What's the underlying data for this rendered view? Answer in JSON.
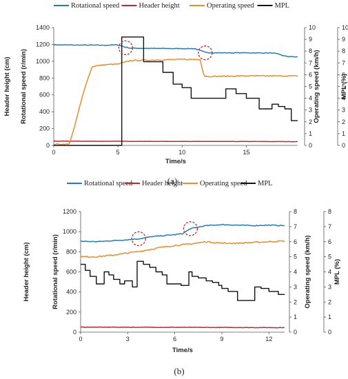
{
  "chart_data": [
    {
      "type": "line",
      "caption": "(a)",
      "xlabel": "Time/s",
      "xlim": [
        0,
        19
      ],
      "xticks": [
        0,
        5,
        10,
        15
      ],
      "axes": [
        {
          "label": "Header height (cm)",
          "ticks": [
            0,
            200,
            400,
            600,
            800,
            1000,
            1200,
            1400
          ],
          "lim": [
            0,
            1400
          ]
        },
        {
          "label": "Rotational speed (r/min)",
          "ticks": [
            0,
            200,
            400,
            600,
            800,
            1000,
            1200,
            1400
          ],
          "lim": [
            0,
            1400
          ]
        },
        {
          "label": "Operating speed (km/h)",
          "ticks": [
            0,
            1,
            2,
            3,
            4,
            5,
            6,
            7,
            8,
            9,
            10
          ],
          "lim": [
            0,
            10
          ]
        },
        {
          "label": "MPL (%)",
          "ticks": [
            0,
            1,
            2,
            3,
            4,
            5,
            6,
            7,
            8,
            9,
            10
          ],
          "lim": [
            0,
            10
          ]
        }
      ],
      "legend_position": "top",
      "series": [
        {
          "name": "Rotational speed",
          "color": "#1f7bc4",
          "axis": 1,
          "noise": 4,
          "points": [
            [
              0,
              1195
            ],
            [
              2,
              1192
            ],
            [
              4,
              1190
            ],
            [
              5,
              1195
            ],
            [
              5.5,
              1170
            ],
            [
              6,
              1155
            ],
            [
              8,
              1152
            ],
            [
              10,
              1150
            ],
            [
              11,
              1150
            ],
            [
              11.8,
              1105
            ],
            [
              12.5,
              1100
            ],
            [
              15,
              1100
            ],
            [
              17,
              1098
            ],
            [
              17.5,
              1085
            ],
            [
              18,
              1060
            ],
            [
              19,
              1050
            ]
          ]
        },
        {
          "name": "Header height",
          "color": "#c0272d",
          "axis": 0,
          "noise": 1,
          "points": [
            [
              0,
              50
            ],
            [
              19,
              45
            ]
          ]
        },
        {
          "name": "Operating speed",
          "color": "#f08a24",
          "axis": 2,
          "noise": 0.04,
          "points": [
            [
              0,
              0.1
            ],
            [
              1.2,
              0.1
            ],
            [
              1.6,
              1.5
            ],
            [
              2,
              3.2
            ],
            [
              2.5,
              5.2
            ],
            [
              3,
              6.7
            ],
            [
              4,
              6.85
            ],
            [
              5,
              6.9
            ],
            [
              5.5,
              7.05
            ],
            [
              6,
              7.2
            ],
            [
              8,
              7.25
            ],
            [
              10,
              7.3
            ],
            [
              11.4,
              7.3
            ],
            [
              11.7,
              5.9
            ],
            [
              12,
              5.85
            ],
            [
              15,
              5.9
            ],
            [
              19,
              5.9
            ]
          ]
        },
        {
          "name": "MPL",
          "color": "#111111",
          "axis": 3,
          "step": true,
          "points": [
            [
              0,
              0
            ],
            [
              5.3,
              0
            ],
            [
              5.3,
              9.2
            ],
            [
              7,
              9.2
            ],
            [
              7,
              7.1
            ],
            [
              8.5,
              7.1
            ],
            [
              8.5,
              6.2
            ],
            [
              9.3,
              6.2
            ],
            [
              9.3,
              5.2
            ],
            [
              10,
              5.2
            ],
            [
              10,
              4.9
            ],
            [
              10.7,
              4.9
            ],
            [
              10.7,
              4.0
            ],
            [
              13.4,
              4.0
            ],
            [
              13.4,
              4.8
            ],
            [
              14.2,
              4.8
            ],
            [
              14.2,
              4.4
            ],
            [
              15,
              4.4
            ],
            [
              15,
              4.0
            ],
            [
              16,
              4.0
            ],
            [
              16,
              3.1
            ],
            [
              17,
              3.1
            ],
            [
              17,
              3.5
            ],
            [
              17.5,
              3.5
            ],
            [
              17.5,
              3.3
            ],
            [
              18,
              3.3
            ],
            [
              18,
              3.1
            ],
            [
              18.5,
              3.1
            ],
            [
              18.5,
              2.1
            ],
            [
              19,
              2.1
            ]
          ]
        }
      ],
      "annotations": [
        {
          "type": "circle",
          "x": 5.6,
          "y": 1160,
          "axis": 1
        },
        {
          "type": "circle",
          "x": 11.8,
          "y": 1100,
          "axis": 1
        }
      ]
    },
    {
      "type": "line",
      "caption": "(b)",
      "xlabel": "Time/s",
      "xlim": [
        0,
        13
      ],
      "xticks": [
        0,
        3,
        6,
        9,
        12
      ],
      "axes": [
        {
          "label": "Header height (cm)",
          "ticks": [
            0,
            200,
            400,
            600,
            800,
            1000,
            1200
          ],
          "lim": [
            0,
            1200
          ]
        },
        {
          "label": "Rotational speed (r/min)",
          "ticks": [
            0,
            200,
            400,
            600,
            800,
            1000,
            1200
          ],
          "lim": [
            0,
            1200
          ]
        },
        {
          "label": "Operating speed (km/h)",
          "ticks": [
            0,
            1,
            2,
            3,
            4,
            5,
            6,
            7,
            8
          ],
          "lim": [
            0,
            8
          ]
        },
        {
          "label": "MPL (%)",
          "ticks": [
            0,
            1,
            2,
            3,
            4,
            5,
            6,
            7,
            8
          ],
          "lim": [
            0,
            8
          ]
        }
      ],
      "legend_position": "top",
      "series": [
        {
          "name": "Rotational speed",
          "color": "#1f7bc4",
          "axis": 1,
          "noise": 4,
          "points": [
            [
              0,
              905
            ],
            [
              1,
              900
            ],
            [
              2,
              910
            ],
            [
              3,
              920
            ],
            [
              3.8,
              930
            ],
            [
              4.5,
              950
            ],
            [
              6,
              970
            ],
            [
              6.5,
              980
            ],
            [
              7,
              1030
            ],
            [
              8,
              1060
            ],
            [
              9,
              1070
            ],
            [
              10,
              1065
            ],
            [
              11,
              1060
            ],
            [
              12,
              1065
            ],
            [
              13,
              1060
            ]
          ]
        },
        {
          "name": "Header height",
          "color": "#c0272d",
          "axis": 0,
          "noise": 2,
          "points": [
            [
              0,
              50
            ],
            [
              13,
              45
            ]
          ]
        },
        {
          "name": "Operating speed",
          "color": "#f08a24",
          "axis": 2,
          "noise": 0.04,
          "points": [
            [
              0,
              5
            ],
            [
              1,
              5
            ],
            [
              2,
              5.1
            ],
            [
              3,
              5.25
            ],
            [
              4,
              5.4
            ],
            [
              5,
              5.6
            ],
            [
              6,
              5.75
            ],
            [
              7,
              5.85
            ],
            [
              8,
              6.0
            ],
            [
              9,
              5.9
            ],
            [
              10,
              5.9
            ],
            [
              11,
              5.95
            ],
            [
              12,
              6.0
            ],
            [
              13,
              6.05
            ]
          ]
        },
        {
          "name": "MPL",
          "color": "#111111",
          "axis": 3,
          "step": true,
          "points": [
            [
              0,
              4.5
            ],
            [
              0.3,
              4.5
            ],
            [
              0.3,
              4.1
            ],
            [
              0.6,
              4.1
            ],
            [
              0.6,
              3.7
            ],
            [
              1.0,
              3.7
            ],
            [
              1.0,
              3.2
            ],
            [
              1.5,
              3.2
            ],
            [
              1.5,
              4.0
            ],
            [
              1.8,
              4.0
            ],
            [
              1.8,
              3.8
            ],
            [
              2.1,
              3.8
            ],
            [
              2.1,
              3.5
            ],
            [
              2.5,
              3.5
            ],
            [
              2.5,
              3.2
            ],
            [
              2.8,
              3.2
            ],
            [
              2.8,
              3.4
            ],
            [
              3.3,
              3.4
            ],
            [
              3.3,
              3.0
            ],
            [
              3.6,
              3.0
            ],
            [
              3.6,
              4.7
            ],
            [
              4.0,
              4.7
            ],
            [
              4.0,
              4.5
            ],
            [
              4.4,
              4.5
            ],
            [
              4.4,
              4.3
            ],
            [
              4.8,
              4.3
            ],
            [
              4.8,
              4.0
            ],
            [
              5.2,
              4.0
            ],
            [
              5.2,
              3.8
            ],
            [
              5.5,
              3.8
            ],
            [
              5.5,
              3.2
            ],
            [
              6.4,
              3.2
            ],
            [
              6.4,
              3.1
            ],
            [
              6.9,
              3.1
            ],
            [
              6.9,
              4.0
            ],
            [
              7.1,
              4.0
            ],
            [
              7.1,
              3.7
            ],
            [
              7.5,
              3.7
            ],
            [
              7.5,
              3.6
            ],
            [
              8.0,
              3.6
            ],
            [
              8.0,
              3.4
            ],
            [
              8.4,
              3.4
            ],
            [
              8.4,
              3.3
            ],
            [
              8.8,
              3.3
            ],
            [
              8.8,
              3.1
            ],
            [
              9.0,
              3.1
            ],
            [
              9.0,
              2.9
            ],
            [
              9.4,
              2.9
            ],
            [
              9.4,
              2.7
            ],
            [
              10.0,
              2.7
            ],
            [
              10.0,
              2.1
            ],
            [
              11.1,
              2.1
            ],
            [
              11.1,
              3.0
            ],
            [
              11.5,
              3.0
            ],
            [
              11.5,
              2.9
            ],
            [
              12.0,
              2.9
            ],
            [
              12.0,
              2.7
            ],
            [
              12.6,
              2.7
            ],
            [
              12.6,
              2.5
            ],
            [
              13,
              2.5
            ]
          ]
        }
      ],
      "annotations": [
        {
          "type": "circle",
          "x": 3.7,
          "y": 930,
          "axis": 1
        },
        {
          "type": "circle",
          "x": 7.0,
          "y": 1030,
          "axis": 1
        }
      ]
    }
  ]
}
